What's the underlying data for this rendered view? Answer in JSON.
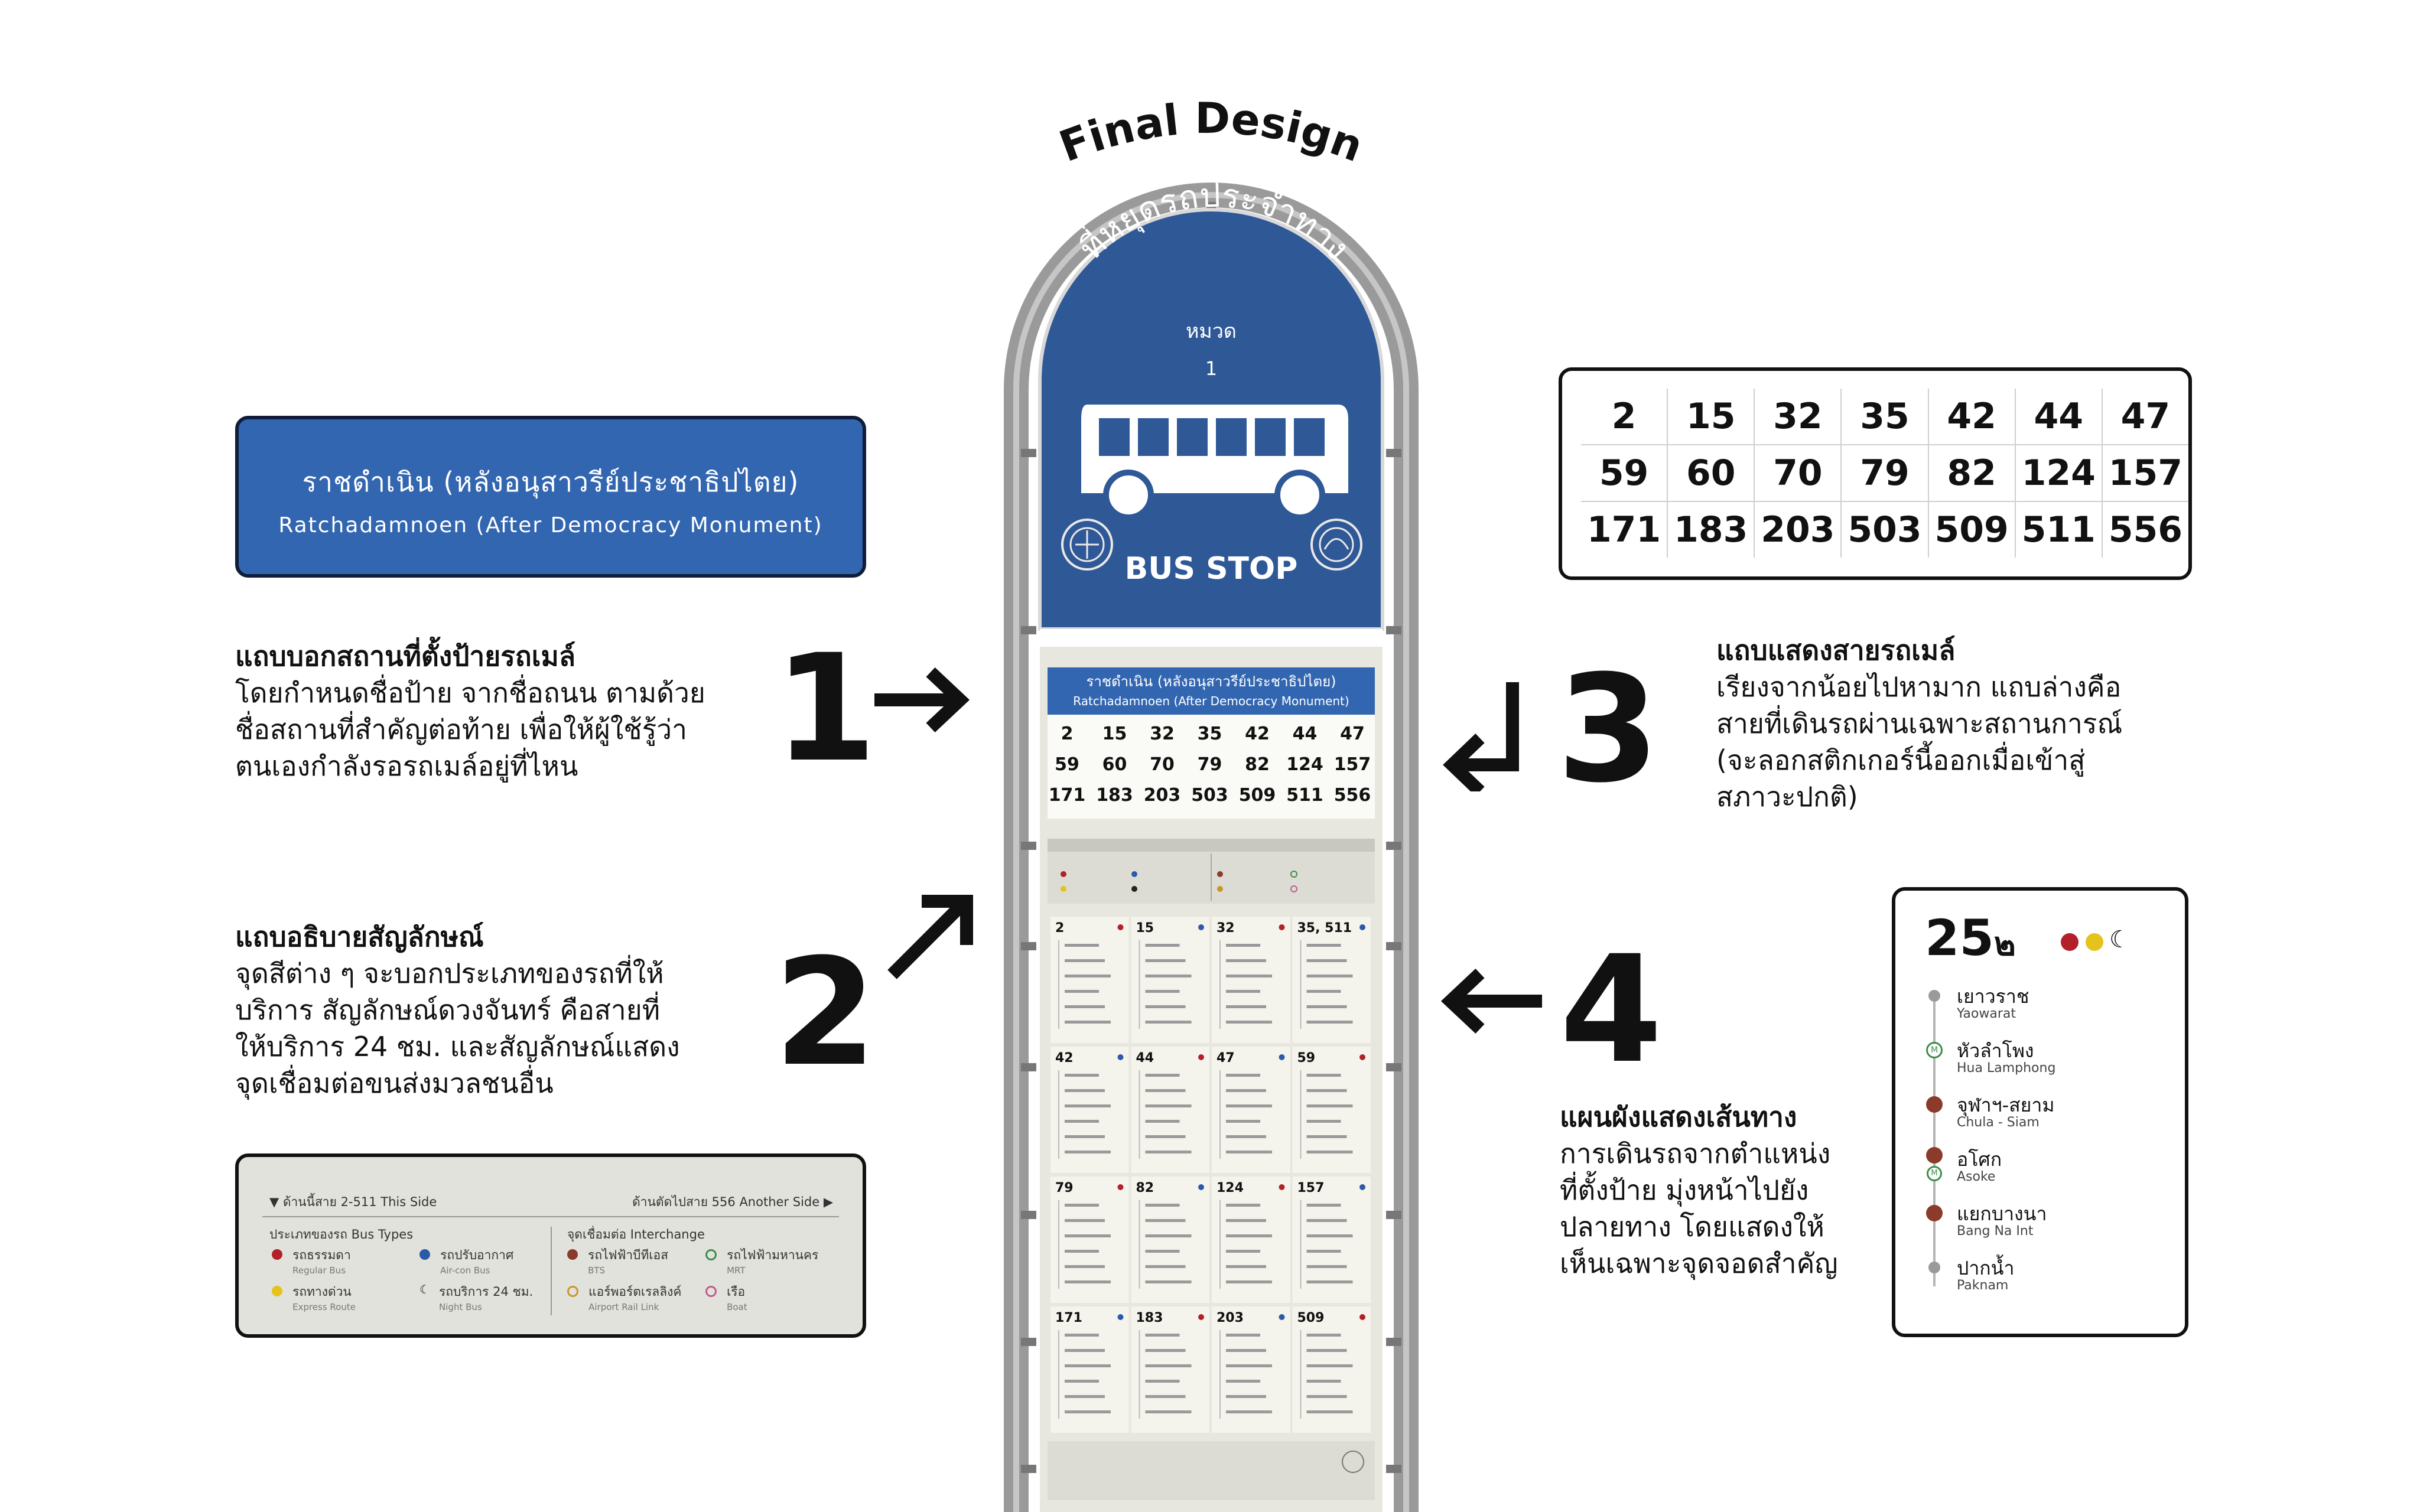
{
  "title": "Final Design",
  "sign": {
    "arch_text": "ที่หยุดรถประจำทาง",
    "zone_label": "หมวด",
    "zone_number": "1",
    "bus_stop_label": "BUS STOP"
  },
  "name_plate": {
    "thai": "ราชดำเนิน (หลังอนุสาวรีย์ประชาธิปไตย)",
    "english": "Ratchadamnoen (After Democracy Monument)"
  },
  "routes": [
    [
      "2",
      "15",
      "32",
      "35",
      "42",
      "44",
      "47"
    ],
    [
      "59",
      "60",
      "70",
      "79",
      "82",
      "124",
      "157"
    ],
    [
      "171",
      "183",
      "203",
      "503",
      "509",
      "511",
      "556"
    ]
  ],
  "big_numbers": [
    "1",
    "2",
    "3",
    "4"
  ],
  "explanations": [
    {
      "heading": "แถบบอกสถานที่ตั้งป้ายรถเมล์",
      "lines": [
        "โดยกำหนดชื่อป้าย จากชื่อถนน ตามด้วย",
        "ชื่อสถานที่สำคัญต่อท้าย เพื่อให้ผู้ใช้รู้ว่า",
        "ตนเองกำลังรอรถเมล์อยู่ที่ไหน"
      ]
    },
    {
      "heading": "แถบอธิบายสัญลักษณ์",
      "lines": [
        "จุดสีต่าง ๆ จะบอกประเภทของรถที่ให้",
        "บริการ สัญลักษณ์ดวงจันทร์ คือสายที่",
        "ให้บริการ 24 ชม. และสัญลักษณ์แสดง",
        "จุดเชื่อมต่อขนส่งมวลชนอื่น"
      ]
    },
    {
      "heading": "แถบแสดงสายรถเมล์",
      "lines": [
        "เรียงจากน้อยไปหามาก แถบล่างคือ",
        "สายที่เดินรถผ่านเฉพาะสถานการณ์",
        "(จะลอกสติกเกอร์นี้ออกเมื่อเข้าสู่",
        "สภาวะปกติ)"
      ]
    },
    {
      "heading": "แผนผังแสดงเส้นทาง",
      "lines": [
        "การเดินรถจากตำแหน่ง",
        "ที่ตั้งป้าย มุ่งหน้าไปยัง",
        "ปลายทาง โดยแสดงให้",
        "เห็นเฉพาะจุดจอดสำคัญ"
      ]
    }
  ],
  "legend": {
    "this_side": "ด้านนี้สาย 2-511 This Side",
    "another_side": "ด้านตัดไปสาย 556 Another Side",
    "bus_types_label": "ประเภทของรถ Bus Types",
    "interchange_label": "จุดเชื่อมต่อ Interchange",
    "items": [
      {
        "th": "รถธรรมดา",
        "en": "Regular Bus",
        "color": "#b3202a"
      },
      {
        "th": "รถปรับอากาศ",
        "en": "Air-con Bus",
        "color": "#2d5aa8"
      },
      {
        "th": "รถทางด่วน",
        "en": "Express Route",
        "color": "#e6c21d"
      },
      {
        "th": "รถบริการ 24 ชม.",
        "en": "Night Bus",
        "color": "#222222"
      }
    ],
    "interchanges": [
      {
        "th": "รถไฟฟ้าบีทีเอส",
        "en": "BTS",
        "color": "#8a3b2a"
      },
      {
        "th": "รถไฟฟ้ามหานคร",
        "en": "MRT",
        "color": "#3d8d4a"
      },
      {
        "th": "แอร์พอร์ตเรลลิงค์",
        "en": "Airport Rail Link",
        "color": "#c9962a"
      },
      {
        "th": "เรือ",
        "en": "Boat",
        "color": "#c25b93"
      }
    ]
  },
  "route_map": {
    "route": "25",
    "route_suffix": "๒",
    "dot_colors": [
      "#b3202a",
      "#e6c21d"
    ],
    "stops": [
      {
        "th": "เยาวราช",
        "en": "Yaowarat",
        "marker": "plain"
      },
      {
        "th": "หัวลำโพง",
        "en": "Hua Lamphong",
        "marker": "mrt"
      },
      {
        "th": "จุฬาฯ-สยาม",
        "en": "Chula - Siam",
        "marker": "bts"
      },
      {
        "th": "อโศก",
        "en": "Asoke",
        "marker": "both"
      },
      {
        "th": "แยกบางนา",
        "en": "Bang Na Int",
        "marker": "bts"
      },
      {
        "th": "ปากน้ำ",
        "en": "Paknam",
        "marker": "plain"
      }
    ]
  },
  "colors": {
    "sign_blue": "#2f5897",
    "plate_blue": "#3366b0",
    "pole_gray": "#9a9a9a",
    "board_bg": "#e8e7df"
  }
}
